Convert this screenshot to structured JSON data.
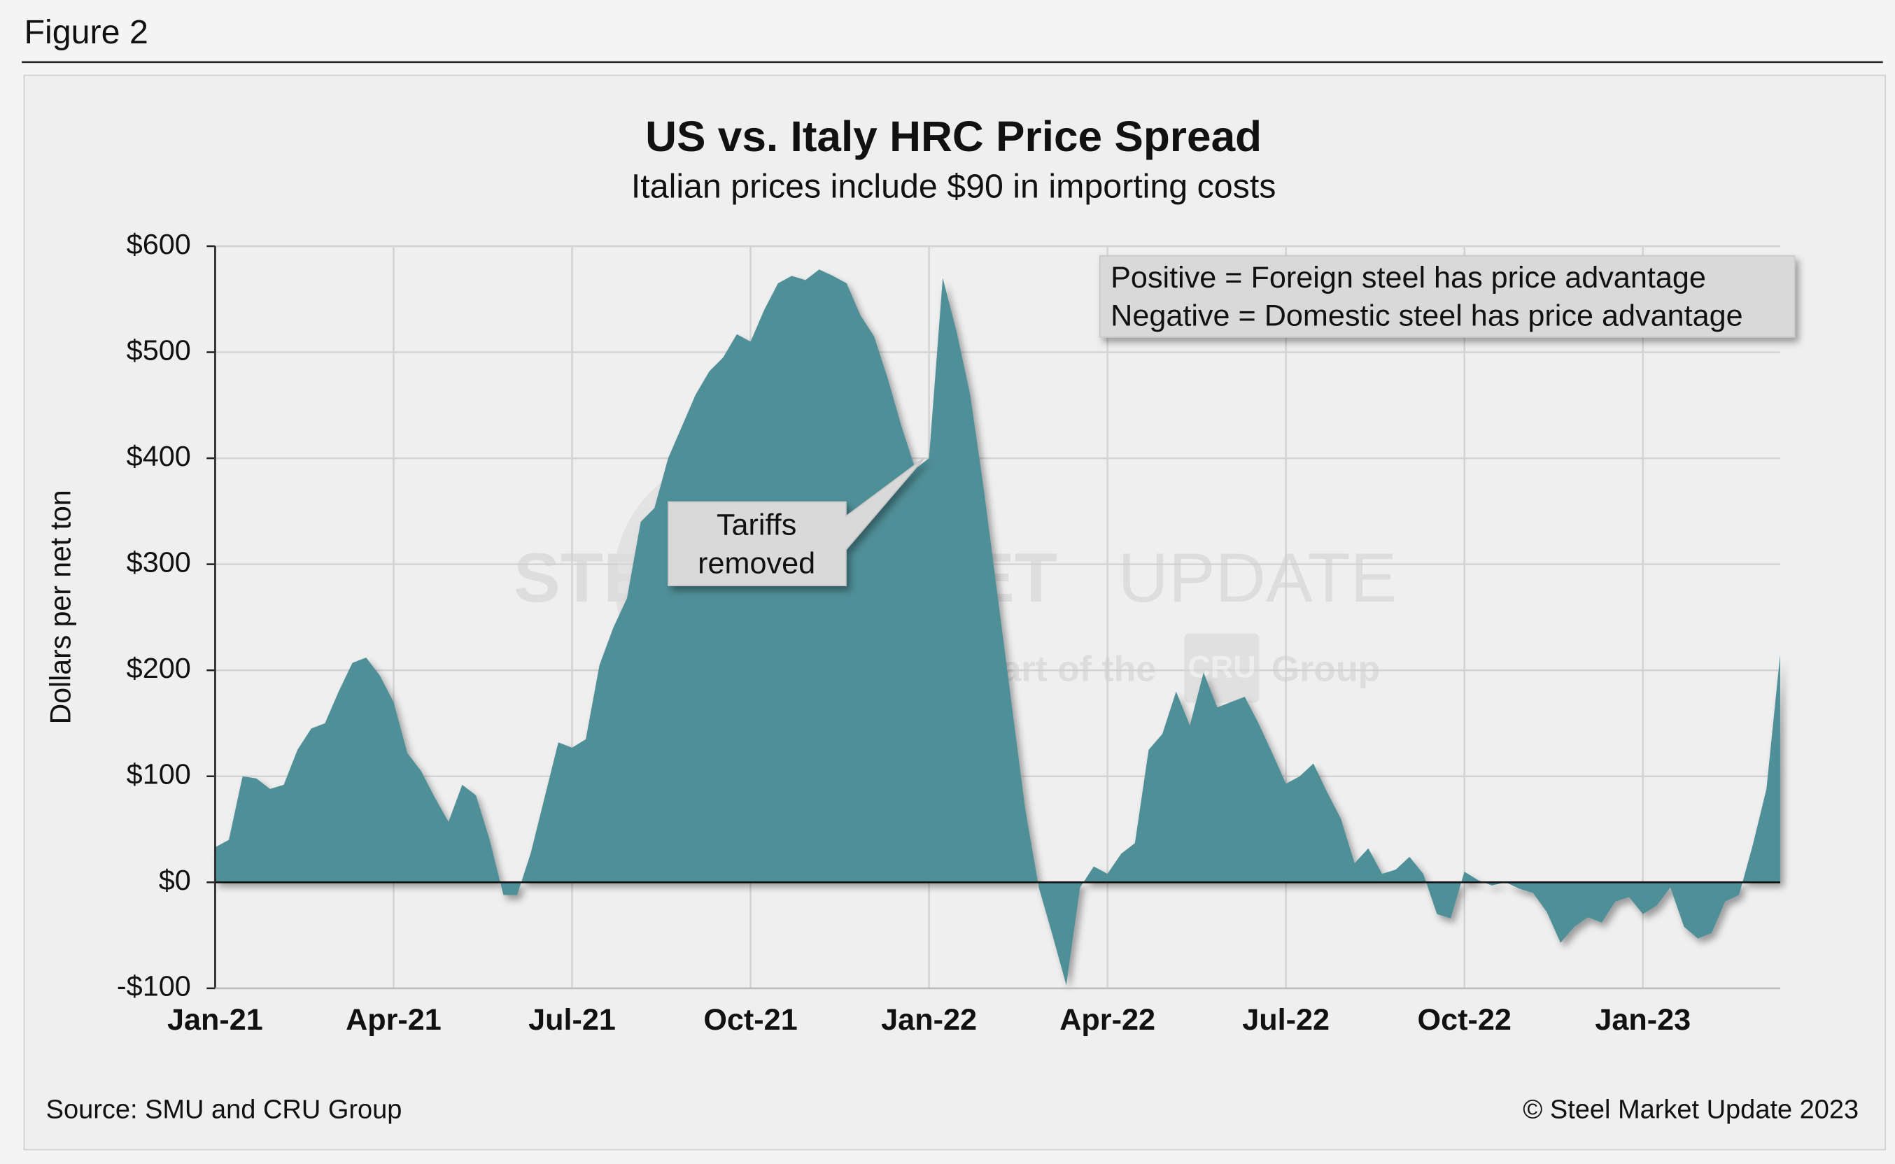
{
  "figure_label": "Figure 2",
  "chart_data": {
    "type": "area",
    "title": "US vs. Italy HRC Price Spread",
    "subtitle": "Italian prices include $90 in importing costs",
    "y_label": "Dollars per net ton",
    "color": "#508f98",
    "grid": true,
    "categories": [
      "Jan-21",
      null,
      null,
      null,
      null,
      null,
      null,
      null,
      null,
      null,
      null,
      null,
      null,
      "Apr-21",
      null,
      null,
      null,
      null,
      null,
      null,
      null,
      null,
      null,
      null,
      null,
      null,
      "Jul-21",
      null,
      null,
      null,
      null,
      null,
      null,
      null,
      null,
      null,
      null,
      null,
      null,
      "Oct-21",
      null,
      null,
      null,
      null,
      null,
      null,
      null,
      null,
      null,
      null,
      null,
      null,
      "Jan-22",
      null,
      null,
      null,
      null,
      null,
      null,
      null,
      null,
      null,
      null,
      null,
      null,
      "Apr-22",
      null,
      null,
      null,
      null,
      null,
      null,
      null,
      null,
      null,
      null,
      null,
      null,
      "Jul-22",
      null,
      null,
      null,
      null,
      null,
      null,
      null,
      null,
      null,
      null,
      null,
      null,
      "Oct-22",
      null,
      null,
      null,
      null,
      null,
      null,
      null,
      null,
      null,
      null,
      null,
      null,
      "Jan-23",
      null,
      null,
      null,
      null,
      null,
      null,
      null,
      null,
      null,
      null
    ],
    "values": [
      33,
      40,
      100,
      98,
      88,
      92,
      125,
      145,
      150,
      180,
      207,
      212,
      195,
      170,
      122,
      105,
      80,
      57,
      92,
      82,
      40,
      -12,
      -12,
      28,
      80,
      132,
      127,
      135,
      205,
      240,
      268,
      340,
      353,
      400,
      430,
      460,
      482,
      495,
      517,
      510,
      540,
      565,
      572,
      568,
      578,
      572,
      565,
      535,
      515,
      475,
      430,
      390,
      400,
      570,
      520,
      460,
      370,
      270,
      170,
      70,
      -5,
      -50,
      -97,
      -5,
      15,
      8,
      27,
      37,
      125,
      140,
      180,
      148,
      198,
      165,
      170,
      175,
      150,
      122,
      93,
      100,
      112,
      85,
      60,
      18,
      32,
      8,
      12,
      24,
      8,
      -30,
      -34,
      10,
      2,
      -3,
      0,
      -6,
      -10,
      -28,
      -57,
      -42,
      -33,
      -38,
      -18,
      -14,
      -30,
      -22,
      -5,
      -42,
      -53,
      -48,
      -18,
      -12,
      35,
      88,
      215
    ],
    "ylim": [
      -100,
      600
    ],
    "yticks": [
      {
        "value": -100,
        "label": "-$100"
      },
      {
        "value": 0,
        "label": "$0"
      },
      {
        "value": 100,
        "label": "$100"
      },
      {
        "value": 200,
        "label": "$200"
      },
      {
        "value": 300,
        "label": "$300"
      },
      {
        "value": 400,
        "label": "$400"
      },
      {
        "value": 500,
        "label": "$500"
      },
      {
        "value": 600,
        "label": "$600"
      }
    ],
    "legend_note": [
      "Positive = Foreign steel has price advantage",
      "Negative = Domestic steel has price advantage"
    ],
    "callout": [
      "Tariffs",
      "removed"
    ],
    "watermark": {
      "name_bold": "STEEL MARKET",
      "name_light": "UPDATE",
      "tag_1": "part of the",
      "tag_cru": "CRU",
      "tag_2": "Group"
    },
    "source": "Source: SMU and CRU Group",
    "copyright": "© Steel Market Update 2023"
  }
}
